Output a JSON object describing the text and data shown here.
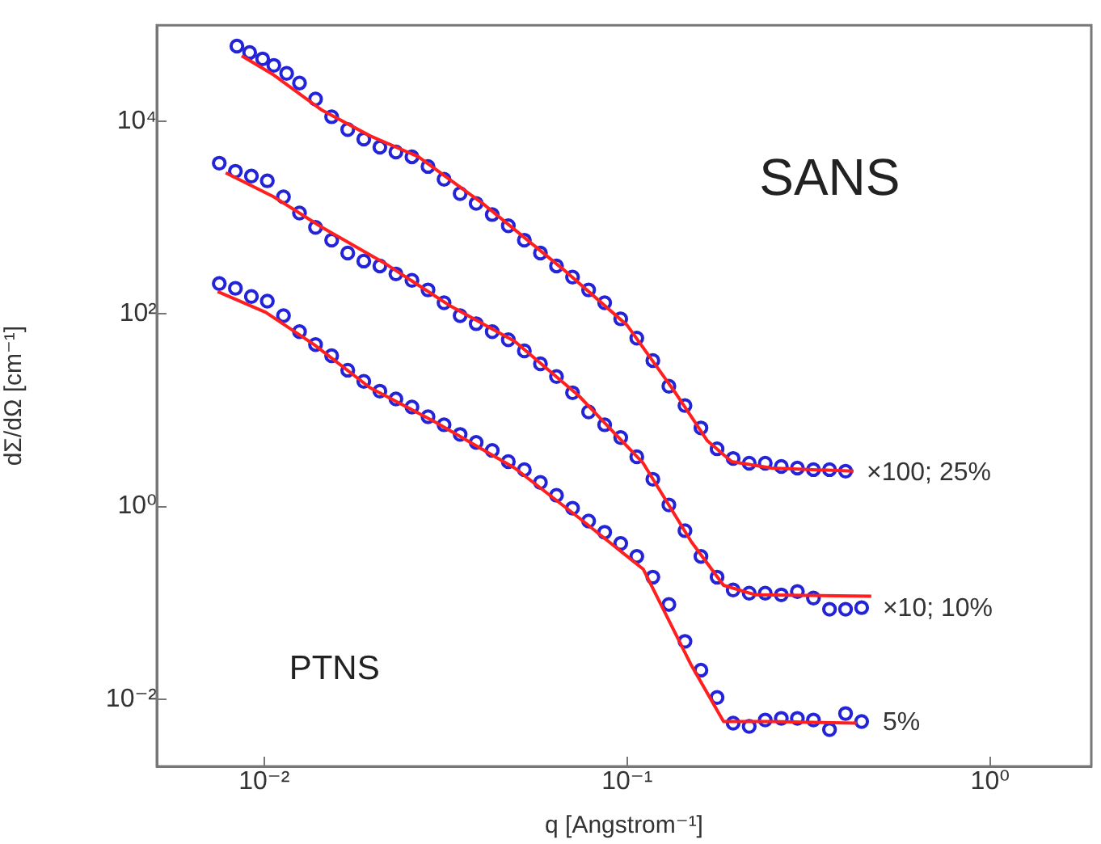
{
  "chart_data": {
    "type": "scatter",
    "xlabel": "q [Angstrom⁻¹]",
    "ylabel": "dΣ/dΩ [cm⁻¹]",
    "log": "xy",
    "grid": false,
    "legend": false,
    "xlim": [
      0.00506,
      1.9
    ],
    "ylim": [
      0.002,
      100000
    ],
    "xticks": [
      {
        "value": 0.01,
        "label": "10⁻²"
      },
      {
        "value": 0.1,
        "label": "10⁻¹"
      },
      {
        "value": 1,
        "label": "10⁰"
      }
    ],
    "yticks": [
      {
        "value": 0.01,
        "label": "10⁻²"
      },
      {
        "value": 1,
        "label": "10⁰"
      },
      {
        "value": 100,
        "label": "10²"
      },
      {
        "value": 10000,
        "label": "10⁴"
      }
    ],
    "annotations": [
      "SANS",
      "PTNS"
    ],
    "series": [
      {
        "name": "×100; 25%",
        "marker": "circle",
        "color": "#2323d8",
        "x": [
          0.00841,
          0.00912,
          0.0099,
          0.01063,
          0.01153,
          0.01251,
          0.01385,
          0.01534,
          0.01699,
          0.01881,
          0.02083,
          0.02306,
          0.02553,
          0.02827,
          0.0313,
          0.03466,
          0.03837,
          0.04249,
          0.04705,
          0.05209,
          0.05768,
          0.06387,
          0.07071,
          0.0783,
          0.0867,
          0.096,
          0.1063,
          0.1177,
          0.1303,
          0.1443,
          0.1597,
          0.1769,
          0.1959,
          0.2169,
          0.2401,
          0.2659,
          0.2944,
          0.326,
          0.361,
          0.3997
        ],
        "values": [
          60700,
          52100,
          44700,
          38300,
          31600,
          25100,
          17100,
          11200,
          8250,
          6560,
          5410,
          4820,
          4300,
          3410,
          2510,
          1780,
          1410,
          1080,
          826,
          585,
          430,
          316,
          242,
          178,
          131,
          89.1,
          56.2,
          32.9,
          17.8,
          11.2,
          6.56,
          3.98,
          3.16,
          2.82,
          2.82,
          2.61,
          2.51,
          2.42,
          2.42,
          2.33
        ]
      },
      {
        "name": "×10; 10%",
        "marker": "circle",
        "color": "#2323d8",
        "x": [
          0.00752,
          0.00833,
          0.00922,
          0.0102,
          0.0113,
          0.01251,
          0.01385,
          0.01534,
          0.01699,
          0.01881,
          0.02083,
          0.02306,
          0.02553,
          0.02827,
          0.0313,
          0.03466,
          0.03837,
          0.04249,
          0.04705,
          0.05209,
          0.05768,
          0.06387,
          0.07071,
          0.0783,
          0.0867,
          0.096,
          0.1063,
          0.1177,
          0.1303,
          0.1443,
          0.1597,
          0.1769,
          0.1959,
          0.2169,
          0.2401,
          0.2659,
          0.2944,
          0.326,
          0.361,
          0.3997,
          0.4426
        ],
        "values": [
          3690,
          3040,
          2710,
          2420,
          1650,
          1120,
          794,
          585,
          430,
          355,
          316,
          261,
          224,
          178,
          131,
          96.2,
          79.4,
          65.6,
          54.1,
          41.4,
          30.4,
          22.4,
          15.2,
          9.62,
          7.08,
          5.21,
          3.29,
          1.92,
          1.04,
          0.562,
          0.304,
          0.185,
          0.136,
          0.126,
          0.126,
          0.121,
          0.131,
          0.112,
          0.0858,
          0.0858,
          0.0891
        ]
      },
      {
        "name": "5%",
        "marker": "circle",
        "color": "#2323d8",
        "x": [
          0.00752,
          0.00833,
          0.00922,
          0.0102,
          0.0113,
          0.01251,
          0.01385,
          0.01534,
          0.01699,
          0.01881,
          0.02083,
          0.02306,
          0.02553,
          0.02827,
          0.0313,
          0.03466,
          0.03837,
          0.04249,
          0.04705,
          0.05209,
          0.05768,
          0.06387,
          0.07071,
          0.0783,
          0.0867,
          0.096,
          0.1063,
          0.1177,
          0.1303,
          0.1443,
          0.1597,
          0.1769,
          0.1959,
          0.2169,
          0.2401,
          0.2659,
          0.2944,
          0.326,
          0.361,
          0.3997,
          0.4426
        ],
        "values": [
          207,
          185,
          152,
          136,
          96.2,
          65.6,
          48.2,
          36.9,
          26.1,
          20,
          15.8,
          13.1,
          10.8,
          8.58,
          7.08,
          5.62,
          4.64,
          3.83,
          2.93,
          2.42,
          1.78,
          1.31,
          0.962,
          0.708,
          0.541,
          0.414,
          0.304,
          0.185,
          0.0962,
          0.0398,
          0.02,
          0.0104,
          0.00562,
          0.00521,
          0.00607,
          0.00631,
          0.00631,
          0.00607,
          0.00482,
          0.00708,
          0.00585
        ]
      },
      {
        "type": "line",
        "marker": "none",
        "color": "#ff1f1f",
        "line_style": "solid",
        "x": [
          0.00867,
          0.01063,
          0.01443,
          0.01959,
          0.02659,
          0.03997,
          0.06653,
          0.1,
          0.1358,
          0.1664,
          0.194,
          0.2501,
          0.4206
        ],
        "values": [
          48200,
          30400,
          13100,
          7080,
          4300,
          1410,
          293,
          76.4,
          15.2,
          4.82,
          2.93,
          2.51,
          2.33
        ]
      },
      {
        "type": "line",
        "marker": "none",
        "color": "#ff1f1f",
        "line_style": "solid",
        "x": [
          0.00783,
          0.01063,
          0.01443,
          0.02169,
          0.0326,
          0.04901,
          0.07366,
          0.1107,
          0.1503,
          0.1843,
          0.2259,
          0.4705
        ],
        "values": [
          2930,
          1650,
          794,
          329,
          121,
          52.1,
          14.1,
          2.82,
          0.43,
          0.152,
          0.121,
          0.117
        ]
      },
      {
        "type": "line",
        "marker": "none",
        "color": "#ff1f1f",
        "line_style": "solid",
        "x": [
          0.00744,
          0.0101,
          0.01371,
          0.01959,
          0.02944,
          0.04901,
          0.07366,
          0.1107,
          0.1503,
          0.1843,
          0.2501,
          0.4292
        ],
        "values": [
          171,
          104,
          48.2,
          17.1,
          7.64,
          2.51,
          0.764,
          0.224,
          0.0224,
          0.00585,
          0.00585,
          0.00562
        ]
      }
    ]
  }
}
